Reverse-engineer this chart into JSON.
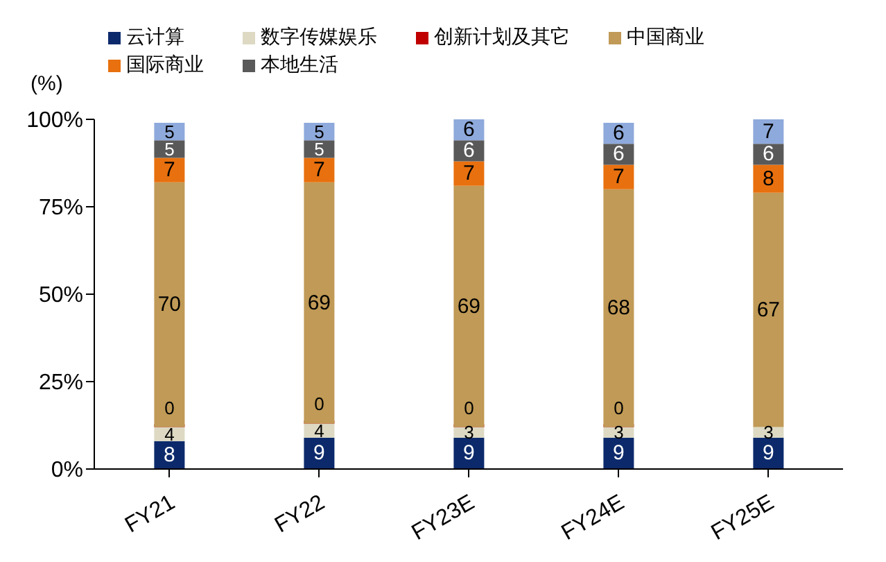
{
  "chart_data": {
    "type": "bar",
    "stacked": true,
    "ylabel": "(%)",
    "categories": [
      "FY21",
      "FY22",
      "FY23E",
      "FY24E",
      "FY25E"
    ],
    "series": [
      {
        "name": "云计算",
        "color": "#0c2a6b",
        "values": [
          8,
          9,
          9,
          9,
          9
        ]
      },
      {
        "name": "数字传媒娱乐",
        "color": "#ddd9c3",
        "values": [
          4,
          4,
          3,
          3,
          3
        ]
      },
      {
        "name": "创新计划及其它",
        "color": "#c00000",
        "values": [
          0,
          0,
          0,
          0,
          null
        ]
      },
      {
        "name": "中国商业",
        "color": "#c09a56",
        "values": [
          70,
          69,
          69,
          68,
          67
        ]
      },
      {
        "name": "国际商业",
        "color": "#e8700e",
        "values": [
          7,
          7,
          7,
          7,
          8
        ]
      },
      {
        "name": "本地生活",
        "color": "#595959",
        "values": [
          5,
          5,
          6,
          6,
          6
        ]
      },
      {
        "color": "#8ea9db",
        "values": [
          5,
          5,
          6,
          6,
          7
        ]
      }
    ],
    "ylim": [
      0,
      100
    ],
    "yticks": [
      {
        "value": 0,
        "label": "0%"
      },
      {
        "value": 25,
        "label": "25%"
      },
      {
        "value": 50,
        "label": "50%"
      },
      {
        "value": 75,
        "label": "75%"
      },
      {
        "value": 100,
        "label": "100%"
      }
    ],
    "data_labels": true,
    "legend": "top",
    "grid": false
  }
}
